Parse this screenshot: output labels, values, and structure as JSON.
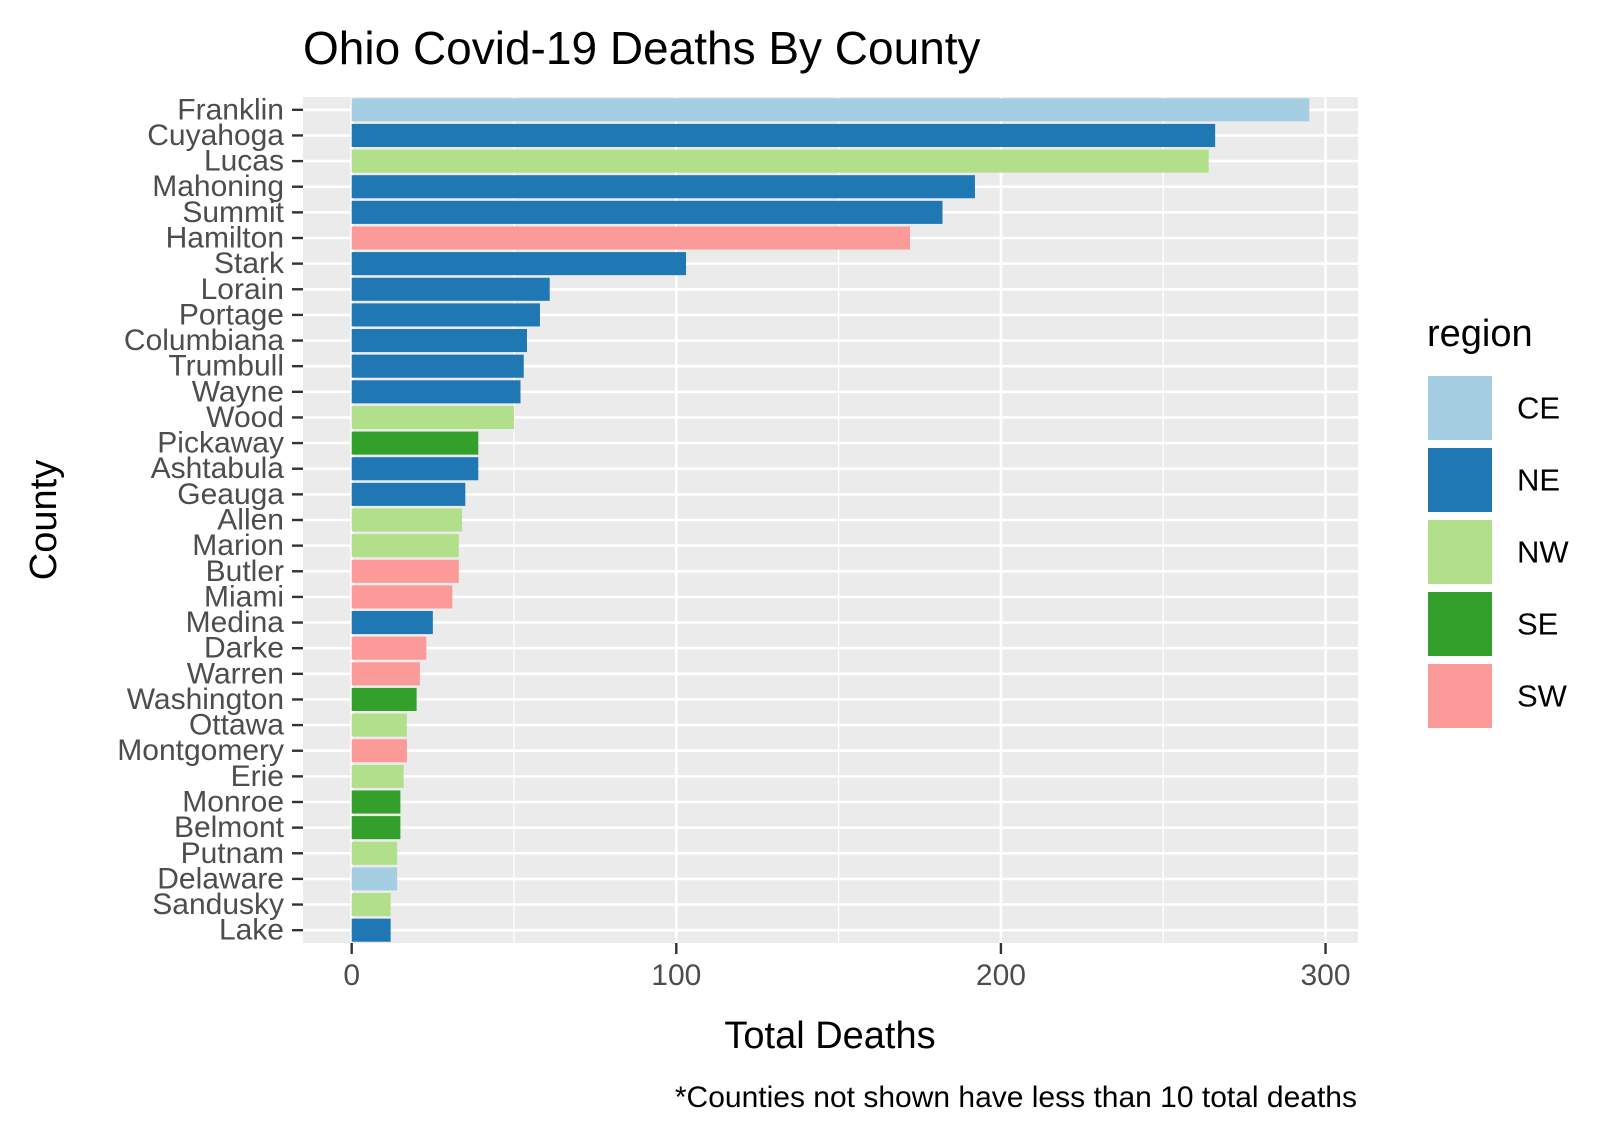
{
  "chart_data": {
    "type": "bar",
    "orientation": "horizontal",
    "title": "Ohio Covid-19 Deaths By County",
    "xlabel": "Total Deaths",
    "ylabel": "County",
    "caption": "*Counties not shown have less than 10 total deaths",
    "xlim": [
      -15,
      310
    ],
    "x_ticks": [
      0,
      100,
      200,
      300
    ],
    "x_tick_labels": [
      "0",
      "100",
      "200",
      "300"
    ],
    "grid": true,
    "legend": {
      "title": "region",
      "placement": "right",
      "entries": [
        {
          "label": "CE",
          "color": "#a6cee3"
        },
        {
          "label": "NE",
          "color": "#1f78b4"
        },
        {
          "label": "NW",
          "color": "#b2df8a"
        },
        {
          "label": "SE",
          "color": "#33a02c"
        },
        {
          "label": "SW",
          "color": "#fb9a99"
        }
      ]
    },
    "categories": [
      "Franklin",
      "Cuyahoga",
      "Lucas",
      "Mahoning",
      "Summit",
      "Hamilton",
      "Stark",
      "Lorain",
      "Portage",
      "Columbiana",
      "Trumbull",
      "Wayne",
      "Wood",
      "Pickaway",
      "Ashtabula",
      "Geauga",
      "Allen",
      "Marion",
      "Butler",
      "Miami",
      "Medina",
      "Darke",
      "Warren",
      "Washington",
      "Ottawa",
      "Montgomery",
      "Erie",
      "Monroe",
      "Belmont",
      "Putnam",
      "Delaware",
      "Sandusky",
      "Lake"
    ],
    "values": [
      295,
      266,
      264,
      192,
      182,
      172,
      103,
      61,
      58,
      54,
      53,
      52,
      50,
      39,
      39,
      35,
      34,
      33,
      33,
      31,
      25,
      23,
      21,
      20,
      17,
      17,
      16,
      15,
      15,
      14,
      14,
      12,
      12
    ],
    "regions": [
      "CE",
      "NE",
      "NW",
      "NE",
      "NE",
      "SW",
      "NE",
      "NE",
      "NE",
      "NE",
      "NE",
      "NE",
      "NW",
      "SE",
      "NE",
      "NE",
      "NW",
      "NW",
      "SW",
      "SW",
      "NE",
      "SW",
      "SW",
      "SE",
      "NW",
      "SW",
      "NW",
      "SE",
      "SE",
      "NW",
      "CE",
      "NW",
      "NE"
    ]
  },
  "colors": {
    "panel_background": "#ebebeb",
    "grid_line": "#ffffff",
    "tick_text": "#4d4d4d",
    "tick_mark": "#333333"
  }
}
